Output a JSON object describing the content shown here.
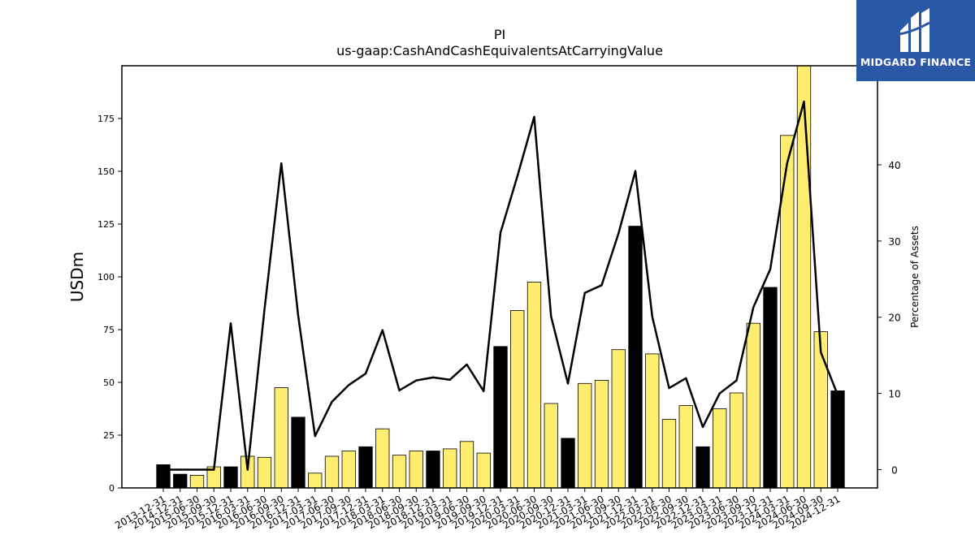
{
  "logo": {
    "text": "MIDGARD FINANCE",
    "icon": "midgard-logo-icon",
    "color": "#2b57a7"
  },
  "chart_data": {
    "type": "bar",
    "title": "PI",
    "subtitle": "us-gaap:CashAndCashEquivalentsAtCarryingValue",
    "ylabel": "USDm",
    "y2label": "Percentage of Assets",
    "ylim": [
      0,
      200
    ],
    "y2lim": [
      -2.4,
      53
    ],
    "yticks": [
      0,
      25,
      50,
      75,
      100,
      125,
      150,
      175
    ],
    "y2ticks": [
      0,
      10,
      20,
      30,
      40
    ],
    "grid": false,
    "colors": {
      "annual": "#000000",
      "quarterly": "#ffed6f",
      "line": "#000000"
    },
    "categories": [
      "2013-12-31",
      "2014-12-31",
      "2015-06-30",
      "2015-09-30",
      "2015-12-31",
      "2016-03-31",
      "2016-06-30",
      "2016-09-30",
      "2016-12-31",
      "2017-03-31",
      "2017-06-30",
      "2017-09-30",
      "2017-12-31",
      "2018-03-31",
      "2018-06-30",
      "2018-09-30",
      "2018-12-31",
      "2019-03-31",
      "2019-06-30",
      "2019-09-30",
      "2019-12-31",
      "2020-03-31",
      "2020-06-30",
      "2020-09-30",
      "2020-12-31",
      "2021-03-31",
      "2021-06-30",
      "2021-09-30",
      "2021-12-31",
      "2022-03-31",
      "2022-06-30",
      "2022-09-30",
      "2022-12-31",
      "2023-03-31",
      "2023-06-30",
      "2023-09-30",
      "2023-12-31",
      "2024-03-31",
      "2024-06-30",
      "2024-09-30",
      "2024-12-31"
    ],
    "series": [
      {
        "type": "bar",
        "values": [
          11,
          6.5,
          6,
          10,
          10,
          15,
          14.5,
          47.5,
          33.5,
          7,
          15,
          17.5,
          19.5,
          28,
          15.5,
          17.5,
          17.5,
          18.5,
          22,
          16.5,
          67,
          84,
          97.5,
          40,
          23.5,
          49.5,
          51,
          65.5,
          124,
          63.5,
          32.5,
          39,
          19.5,
          37.5,
          45,
          78,
          95,
          167,
          200,
          74,
          46
        ]
      },
      {
        "type": "line",
        "axis": "right",
        "values": [
          0,
          0,
          0,
          0,
          19.2,
          0,
          21,
          40.2,
          20.2,
          4.4,
          8.9,
          11.1,
          12.6,
          18.3,
          10.4,
          11.7,
          12.1,
          11.8,
          13.8,
          10.3,
          31.1,
          38.5,
          46.3,
          20.1,
          11.3,
          23.2,
          24.2,
          31,
          39.2,
          20.1,
          10.7,
          12,
          5.6,
          10,
          11.7,
          21.3,
          26.3,
          40.2,
          48.3,
          15.4,
          9.8
        ]
      }
    ],
    "annual_flags": [
      1,
      1,
      0,
      0,
      1,
      0,
      0,
      0,
      1,
      0,
      0,
      0,
      1,
      0,
      0,
      0,
      1,
      0,
      0,
      0,
      1,
      0,
      0,
      0,
      1,
      0,
      0,
      0,
      1,
      0,
      0,
      0,
      1,
      0,
      0,
      0,
      1,
      0,
      0,
      0,
      1
    ]
  }
}
